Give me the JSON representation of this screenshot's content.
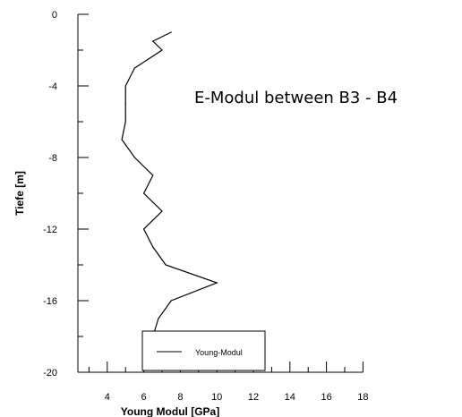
{
  "chart_data": {
    "type": "line",
    "title": "E-Modul between B3 - B4",
    "xlabel": "Young Modul [GPa]",
    "ylabel": "Tiefe [m]",
    "xlim": [
      2,
      18
    ],
    "ylim": [
      -20,
      0
    ],
    "x_ticks": [
      "4",
      "6",
      "8",
      "10",
      "12",
      "14",
      "16",
      "18"
    ],
    "y_ticks": [
      "0",
      "-4",
      "-8",
      "-12",
      "-16",
      "-20"
    ],
    "legend_position": "bottom-right",
    "grid": false,
    "series": [
      {
        "name": "Young-Modul",
        "color": "#000000",
        "points": [
          {
            "x": 7.5,
            "y": -1.0
          },
          {
            "x": 6.5,
            "y": -1.5
          },
          {
            "x": 7.0,
            "y": -2.0
          },
          {
            "x": 5.5,
            "y": -3.0
          },
          {
            "x": 5.0,
            "y": -4.0
          },
          {
            "x": 5.0,
            "y": -5.0
          },
          {
            "x": 5.0,
            "y": -6.0
          },
          {
            "x": 4.8,
            "y": -7.0
          },
          {
            "x": 5.5,
            "y": -8.0
          },
          {
            "x": 6.5,
            "y": -9.0
          },
          {
            "x": 6.0,
            "y": -10.0
          },
          {
            "x": 7.0,
            "y": -11.0
          },
          {
            "x": 6.0,
            "y": -12.0
          },
          {
            "x": 6.5,
            "y": -13.0
          },
          {
            "x": 7.2,
            "y": -14.0
          },
          {
            "x": 10.0,
            "y": -15.0
          },
          {
            "x": 7.5,
            "y": -16.0
          },
          {
            "x": 6.8,
            "y": -17.0
          },
          {
            "x": 6.5,
            "y": -18.0
          }
        ]
      }
    ]
  }
}
